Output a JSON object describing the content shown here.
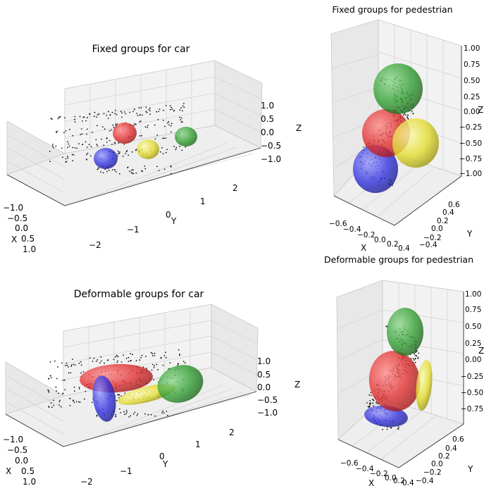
{
  "chart_data": [
    {
      "type": "scatter",
      "subtype": "3d point cloud with ellipsoids",
      "title": "Fixed groups for car",
      "xlabel": "X",
      "ylabel": "Y",
      "zlabel": "Z",
      "x_ticks": [
        "−1.0",
        "−0.5",
        "0.0",
        "0.5",
        "1.0"
      ],
      "y_ticks": [
        "−2",
        "−1",
        "0",
        "1",
        "2"
      ],
      "z_ticks": [
        "1.0",
        "0.5",
        "0.0",
        "−0.5",
        "−1.0"
      ],
      "groups": [
        {
          "color": "#e03030",
          "shape": "sphere"
        },
        {
          "color": "#e8e030",
          "shape": "sphere"
        },
        {
          "color": "#30a030",
          "shape": "sphere"
        },
        {
          "color": "#3030e0",
          "shape": "sphere"
        }
      ]
    },
    {
      "type": "scatter",
      "subtype": "3d point cloud with ellipsoids",
      "title": "Fixed groups for pedestrian",
      "xlabel": "X",
      "ylabel": "Y",
      "zlabel": "Z",
      "x_ticks": [
        "−0.6",
        "−0.4",
        "−0.2",
        "0.0",
        "0.2",
        "0.4"
      ],
      "y_ticks": [
        "−0.4",
        "−0.2",
        "0.0",
        "0.2",
        "0.4",
        "0.6"
      ],
      "z_ticks": [
        "1.00",
        "0.75",
        "0.50",
        "0.25",
        "0.00",
        "−0.25",
        "−0.50",
        "−0.75",
        "−1.00"
      ],
      "groups": [
        {
          "color": "#30a030",
          "shape": "sphere"
        },
        {
          "color": "#e03030",
          "shape": "sphere"
        },
        {
          "color": "#e8e030",
          "shape": "sphere"
        },
        {
          "color": "#3030e0",
          "shape": "sphere"
        }
      ]
    },
    {
      "type": "scatter",
      "subtype": "3d point cloud with ellipsoids",
      "title": "Deformable groups for car",
      "xlabel": "X",
      "ylabel": "Y",
      "zlabel": "Z",
      "x_ticks": [
        "−1.0",
        "−0.5",
        "0.0",
        "0.5",
        "1.0"
      ],
      "y_ticks": [
        "−2",
        "−1",
        "0",
        "1",
        "2"
      ],
      "z_ticks": [
        "1.0",
        "0.5",
        "0.0",
        "−0.5",
        "−1.0"
      ],
      "groups": [
        {
          "color": "#e03030",
          "shape": "ellipsoid"
        },
        {
          "color": "#e8e030",
          "shape": "ellipsoid"
        },
        {
          "color": "#30a030",
          "shape": "ellipsoid"
        },
        {
          "color": "#3030e0",
          "shape": "ellipsoid"
        }
      ]
    },
    {
      "type": "scatter",
      "subtype": "3d point cloud with ellipsoids",
      "title": "Deformable groups for pedestrian",
      "xlabel": "X",
      "ylabel": "Y",
      "zlabel": "Z",
      "x_ticks": [
        "−0.6",
        "−0.4",
        "−0.2",
        "0.0",
        "0.2",
        "0.4"
      ],
      "y_ticks": [
        "−0.4",
        "−0.2",
        "0.0",
        "0.2",
        "0.4",
        "0.6"
      ],
      "z_ticks": [
        "1.00",
        "0.75",
        "0.50",
        "0.25",
        "0.00",
        "−0.25",
        "−0.50",
        "−0.75"
      ],
      "groups": [
        {
          "color": "#30a030",
          "shape": "ellipsoid"
        },
        {
          "color": "#e03030",
          "shape": "ellipsoid"
        },
        {
          "color": "#e8e030",
          "shape": "ellipsoid"
        },
        {
          "color": "#3030e0",
          "shape": "ellipsoid"
        }
      ]
    }
  ]
}
